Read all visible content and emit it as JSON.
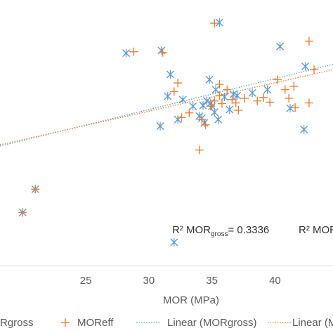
{
  "chart_data": {
    "type": "scatter",
    "xlabel": "MOR (MPa)",
    "ylabel": "",
    "xlim": [
      18.2,
      44.6
    ],
    "xticks": [
      "25",
      "30",
      "35",
      "40"
    ],
    "grid": false,
    "legend_position": "bottom",
    "series": [
      {
        "name": "MORgross",
        "marker": "asterisk",
        "color": "#5B9BD5",
        "points": [
          [
            20.0,
            3.2
          ],
          [
            21.0,
            2.85
          ],
          [
            28.2,
            0.8
          ],
          [
            31.0,
            0.76
          ],
          [
            32.0,
            3.65
          ],
          [
            32.3,
            1.8
          ],
          [
            32.7,
            1.5
          ],
          [
            31.7,
            1.12
          ],
          [
            33.5,
            1.6
          ],
          [
            34.0,
            1.75
          ],
          [
            34.2,
            1.78
          ],
          [
            34.4,
            1.85
          ],
          [
            34.3,
            1.59
          ],
          [
            34.6,
            1.52
          ],
          [
            34.8,
            1.2
          ],
          [
            35.0,
            1.6
          ],
          [
            35.3,
            1.35
          ],
          [
            35.5,
            1.8
          ],
          [
            35.6,
            0.34
          ],
          [
            34.9,
            1.55
          ],
          [
            35.2,
            1.69
          ],
          [
            36.0,
            1.46
          ],
          [
            36.4,
            1.65
          ],
          [
            36.7,
            1.42
          ],
          [
            37.0,
            1.44
          ],
          [
            38.2,
            1.4
          ],
          [
            39.4,
            1.35
          ],
          [
            40.4,
            0.7
          ],
          [
            41.2,
            1.63
          ],
          [
            42.3,
            1.95
          ],
          [
            42.4,
            1.0
          ],
          [
            31.5,
            1.45
          ],
          [
            30.9,
            1.9
          ]
        ]
      },
      {
        "name": "MOReff",
        "marker": "plus",
        "color": "#ED7D31",
        "points": [
          [
            20.0,
            3.2
          ],
          [
            21.0,
            2.85
          ],
          [
            28.8,
            0.78
          ],
          [
            31.1,
            0.79
          ],
          [
            32.3,
            1.25
          ],
          [
            32.0,
            1.38
          ],
          [
            32.6,
            1.77
          ],
          [
            33.2,
            1.7
          ],
          [
            34.2,
            1.8
          ],
          [
            34.5,
            1.88
          ],
          [
            34.9,
            1.6
          ],
          [
            35.2,
            1.52
          ],
          [
            35.2,
            0.35
          ],
          [
            35.6,
            1.44
          ],
          [
            35.6,
            1.27
          ],
          [
            36.2,
            1.35
          ],
          [
            36.6,
            1.5
          ],
          [
            36.9,
            1.55
          ],
          [
            37.1,
            1.66
          ],
          [
            37.6,
            1.48
          ],
          [
            38.6,
            1.52
          ],
          [
            39.1,
            1.47
          ],
          [
            39.6,
            1.54
          ],
          [
            40.2,
            1.2
          ],
          [
            40.8,
            1.35
          ],
          [
            41.1,
            1.48
          ],
          [
            41.5,
            1.3
          ],
          [
            41.6,
            1.62
          ],
          [
            42.7,
            1.55
          ],
          [
            42.7,
            0.62
          ],
          [
            43.1,
            1.05
          ],
          [
            35.8,
            1.56
          ],
          [
            34.0,
            2.26
          ]
        ]
      }
    ],
    "trendlines": [
      {
        "name": "Linear (MORgross)",
        "color": "#5B9BD5",
        "style": "dotted",
        "x": [
          18.2,
          44.6
        ],
        "y": [
          2.2,
          0.97
        ]
      },
      {
        "name": "Linear (MORfff)",
        "color": "#ED7D31",
        "style": "dotted",
        "x": [
          18.2,
          44.6
        ],
        "y": [
          2.18,
          1.05
        ]
      }
    ],
    "annotations": [
      {
        "prefix": "R² MOR",
        "sub": "gross",
        "suffix": "= 0.3336"
      },
      {
        "prefix": "R² MOR",
        "sub": "",
        "suffix": ""
      }
    ],
    "legend": [
      {
        "label": "Rgross",
        "marker": "asterisk",
        "color": "#5B9BD5"
      },
      {
        "label": "MOReff",
        "marker": "plus",
        "color": "#ED7D31"
      },
      {
        "label": "Linear (MORgross)",
        "marker": "dotted-line",
        "color": "#5B9BD5"
      },
      {
        "label": "Linear (M",
        "marker": "dotted-line",
        "color": "#ED7D31"
      }
    ]
  }
}
